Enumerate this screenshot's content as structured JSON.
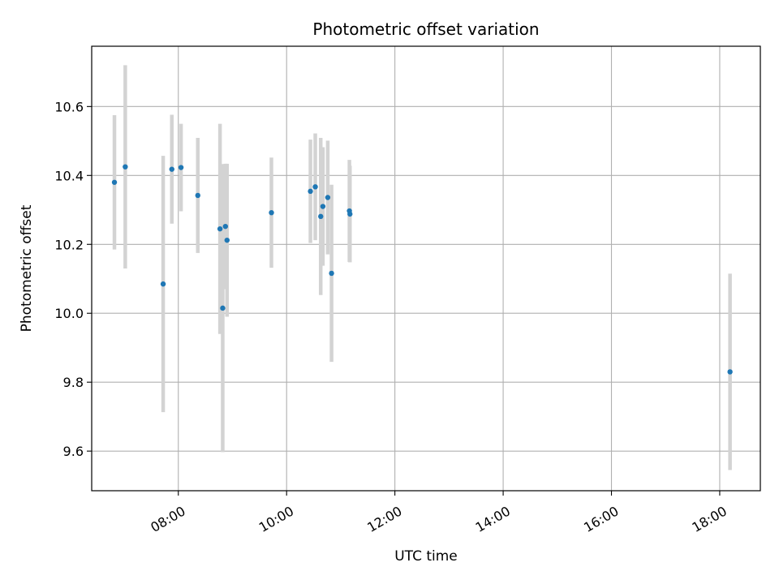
{
  "chart_data": {
    "type": "scatter",
    "title": "Photometric offset variation",
    "xlabel": "UTC time",
    "ylabel": "Photometric offset",
    "x_unit": "hours UTC",
    "xlim": [
      6.4,
      18.75
    ],
    "ylim": [
      9.485,
      10.775
    ],
    "grid": true,
    "marker_color": "#1f77b4",
    "errorbar_color": "#d3d3d3",
    "x_ticks": [
      {
        "value": 8,
        "label": "08:00"
      },
      {
        "value": 10,
        "label": "10:00"
      },
      {
        "value": 12,
        "label": "12:00"
      },
      {
        "value": 14,
        "label": "14:00"
      },
      {
        "value": 16,
        "label": "16:00"
      },
      {
        "value": 18,
        "label": "18:00"
      }
    ],
    "y_ticks": [
      {
        "value": 9.6,
        "label": "9.6"
      },
      {
        "value": 9.8,
        "label": "9.8"
      },
      {
        "value": 10.0,
        "label": "10.0"
      },
      {
        "value": 10.2,
        "label": "10.2"
      },
      {
        "value": 10.4,
        "label": "10.4"
      },
      {
        "value": 10.6,
        "label": "10.6"
      }
    ],
    "points": [
      {
        "x": 6.82,
        "y": 10.38,
        "err": 0.195
      },
      {
        "x": 7.02,
        "y": 10.425,
        "err": 0.295
      },
      {
        "x": 7.72,
        "y": 10.085,
        "err": 0.372
      },
      {
        "x": 7.88,
        "y": 10.418,
        "err": 0.158
      },
      {
        "x": 8.05,
        "y": 10.423,
        "err": 0.127
      },
      {
        "x": 8.36,
        "y": 10.342,
        "err": 0.167
      },
      {
        "x": 8.77,
        "y": 10.245,
        "err": 0.305
      },
      {
        "x": 8.82,
        "y": 10.015,
        "err": 0.418
      },
      {
        "x": 8.87,
        "y": 10.252,
        "err": 0.182
      },
      {
        "x": 8.9,
        "y": 10.212,
        "err": 0.222
      },
      {
        "x": 9.72,
        "y": 10.292,
        "err": 0.16
      },
      {
        "x": 10.44,
        "y": 10.354,
        "err": 0.15
      },
      {
        "x": 10.53,
        "y": 10.367,
        "err": 0.155
      },
      {
        "x": 10.63,
        "y": 10.281,
        "err": 0.228
      },
      {
        "x": 10.67,
        "y": 10.31,
        "err": 0.172
      },
      {
        "x": 10.76,
        "y": 10.336,
        "err": 0.165
      },
      {
        "x": 10.83,
        "y": 10.116,
        "err": 0.257
      },
      {
        "x": 11.16,
        "y": 10.297,
        "err": 0.148
      },
      {
        "x": 11.17,
        "y": 10.288,
        "err": 0.14
      },
      {
        "x": 18.19,
        "y": 9.83,
        "err": 0.285
      }
    ]
  }
}
